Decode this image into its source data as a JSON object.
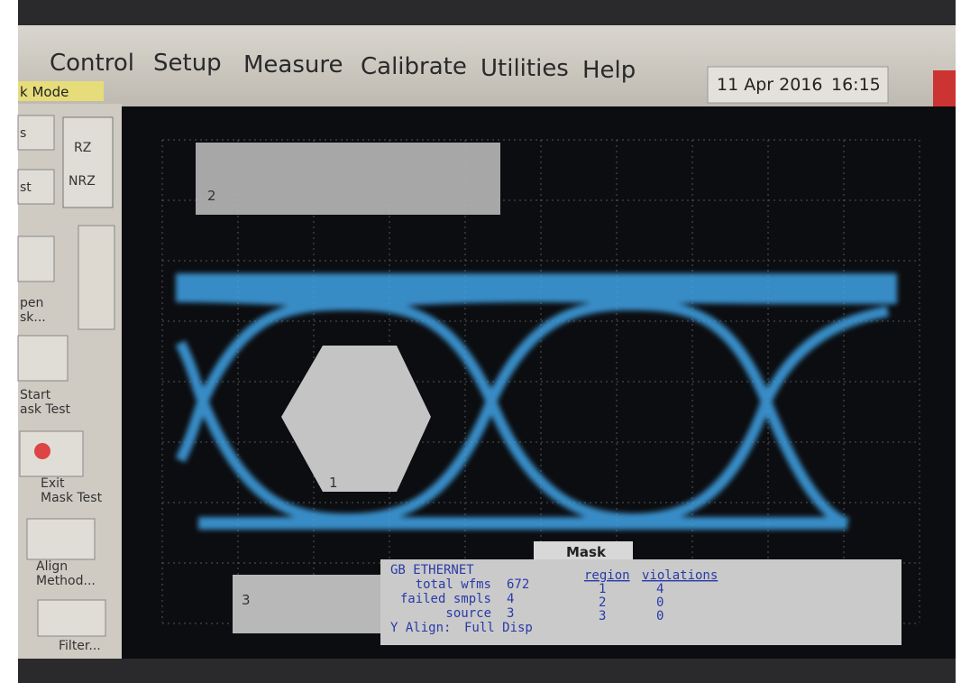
{
  "menu": [
    "Control",
    "Setup",
    "Measure",
    "Calibrate",
    "Utilities",
    "Help"
  ],
  "datetime": {
    "date": "11 Apr 2016",
    "time": "16:15"
  },
  "mode": "k Mode",
  "cropped_buttons": [
    "s",
    "st"
  ],
  "toggles": [
    "RZ",
    "NRZ"
  ],
  "side_buttons": [
    {
      "lines": [
        "pen",
        "sk..."
      ]
    },
    {
      "lines": [
        "Start",
        "ask Test"
      ]
    },
    {
      "lines": [
        "Exit",
        "Mask Test"
      ]
    },
    {
      "lines": [
        "Align",
        "Method..."
      ]
    },
    {
      "lines": [
        "Filter..."
      ]
    }
  ],
  "mask_regions": [
    "2",
    "1",
    "3"
  ],
  "panel": {
    "tab": "Mask",
    "title": "GB ETHERNET",
    "stats": [
      {
        "label": "total wfms",
        "value": 672
      },
      {
        "label": "failed smpls",
        "value": 4
      },
      {
        "label": "source",
        "value": 3
      }
    ],
    "y_align": {
      "label": "Y Align:",
      "value": "Full Disp"
    },
    "table": {
      "headers": [
        "region",
        "violations"
      ],
      "rows": [
        [
          1,
          4
        ],
        [
          2,
          0
        ],
        [
          3,
          0
        ]
      ]
    }
  }
}
